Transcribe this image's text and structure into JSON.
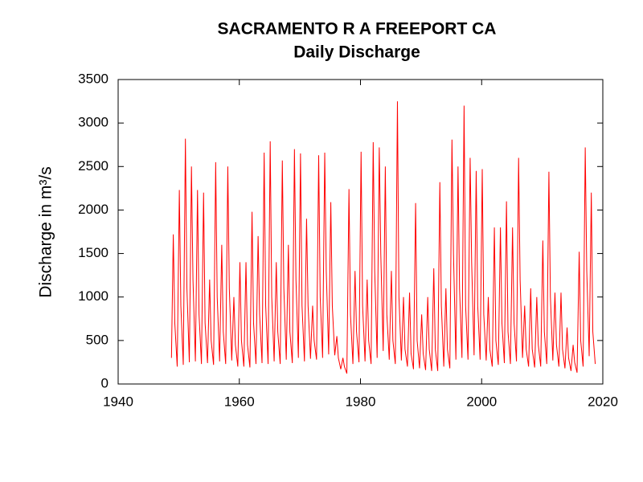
{
  "chart_data": {
    "type": "line",
    "title": "SACRAMENTO R A FREEPORT CA",
    "subtitle": "Daily Discharge",
    "y_label": "Discharge in m³/s",
    "color": "#ff0000",
    "xlim": [
      1940,
      2020
    ],
    "xticks": [
      1940,
      1960,
      1980,
      2000,
      2020
    ],
    "ylim": [
      0,
      3500
    ],
    "yticks": [
      0,
      500,
      1000,
      1500,
      2000,
      2500,
      3000,
      3500
    ],
    "x": [
      1948.8,
      1949.1,
      1949.35,
      1949.75,
      1950.1,
      1950.35,
      1950.75,
      1951.1,
      1951.35,
      1951.75,
      1952.1,
      1952.35,
      1952.75,
      1953.1,
      1953.35,
      1953.75,
      1954.1,
      1954.35,
      1954.75,
      1955.1,
      1955.35,
      1955.75,
      1956.1,
      1956.35,
      1956.75,
      1957.1,
      1957.35,
      1957.75,
      1958.1,
      1958.35,
      1958.75,
      1959.1,
      1959.35,
      1959.75,
      1960.1,
      1960.35,
      1960.75,
      1961.1,
      1961.35,
      1961.75,
      1962.1,
      1962.35,
      1962.75,
      1963.1,
      1963.35,
      1963.75,
      1964.1,
      1964.35,
      1964.75,
      1965.1,
      1965.35,
      1965.75,
      1966.1,
      1966.35,
      1966.75,
      1967.1,
      1967.35,
      1967.75,
      1968.1,
      1968.35,
      1968.75,
      1969.1,
      1969.35,
      1969.75,
      1970.1,
      1970.35,
      1970.75,
      1971.1,
      1971.35,
      1971.75,
      1972.1,
      1972.35,
      1972.75,
      1973.1,
      1973.35,
      1973.75,
      1974.1,
      1974.35,
      1974.75,
      1975.1,
      1975.35,
      1975.75,
      1976.1,
      1976.35,
      1976.75,
      1977.1,
      1977.35,
      1977.75,
      1978.1,
      1978.35,
      1978.75,
      1979.1,
      1979.35,
      1979.75,
      1980.1,
      1980.35,
      1980.75,
      1981.1,
      1981.35,
      1981.75,
      1982.1,
      1982.35,
      1982.75,
      1983.1,
      1983.35,
      1983.75,
      1984.1,
      1984.35,
      1984.75,
      1985.1,
      1985.35,
      1985.75,
      1986.1,
      1986.35,
      1986.75,
      1987.1,
      1987.35,
      1987.75,
      1988.1,
      1988.35,
      1988.75,
      1989.1,
      1989.35,
      1989.75,
      1990.1,
      1990.35,
      1990.75,
      1991.1,
      1991.35,
      1991.75,
      1992.1,
      1992.35,
      1992.75,
      1993.1,
      1993.35,
      1993.75,
      1994.1,
      1994.35,
      1994.75,
      1995.1,
      1995.35,
      1995.75,
      1996.1,
      1996.35,
      1996.75,
      1997.1,
      1997.35,
      1997.75,
      1998.1,
      1998.35,
      1998.75,
      1999.1,
      1999.35,
      1999.75,
      2000.1,
      2000.35,
      2000.75,
      2001.1,
      2001.35,
      2001.75,
      2002.1,
      2002.35,
      2002.75,
      2003.1,
      2003.35,
      2003.75,
      2004.1,
      2004.35,
      2004.75,
      2005.1,
      2005.35,
      2005.75,
      2006.1,
      2006.35,
      2006.75,
      2007.1,
      2007.35,
      2007.75,
      2008.1,
      2008.35,
      2008.75,
      2009.1,
      2009.35,
      2009.75,
      2010.1,
      2010.35,
      2010.75,
      2011.1,
      2011.35,
      2011.75,
      2012.1,
      2012.35,
      2012.75,
      2013.1,
      2013.35,
      2013.75,
      2014.1,
      2014.35,
      2014.75,
      2015.1,
      2015.35,
      2015.75,
      2016.1,
      2016.35,
      2016.75,
      2017.1,
      2017.35,
      2017.75,
      2018.1,
      2018.35,
      2018.75
    ],
    "values": [
      300,
      1720,
      700,
      200,
      2230,
      900,
      220,
      2820,
      1100,
      250,
      2500,
      1200,
      260,
      2230,
      800,
      230,
      2200,
      700,
      240,
      1200,
      500,
      220,
      2550,
      1000,
      260,
      1600,
      600,
      230,
      2500,
      1100,
      270,
      1000,
      450,
      200,
      1400,
      500,
      200,
      1400,
      450,
      190,
      1980,
      700,
      230,
      1700,
      800,
      240,
      2660,
      900,
      230,
      2790,
      1000,
      260,
      1400,
      600,
      230,
      2570,
      1100,
      280,
      1600,
      600,
      240,
      2700,
      1200,
      300,
      2650,
      900,
      260,
      1900,
      900,
      290,
      900,
      500,
      280,
      2630,
      1000,
      300,
      2660,
      1300,
      340,
      2090,
      900,
      330,
      550,
      300,
      170,
      300,
      200,
      120,
      2240,
      800,
      230,
      1300,
      600,
      250,
      2670,
      900,
      260,
      1200,
      500,
      230,
      2780,
      1300,
      300,
      2720,
      1500,
      380,
      2500,
      800,
      280,
      1300,
      500,
      230,
      3250,
      1000,
      270,
      1000,
      400,
      200,
      1050,
      350,
      170,
      2080,
      500,
      180,
      800,
      350,
      160,
      1000,
      400,
      150,
      1330,
      400,
      150,
      2320,
      900,
      200,
      1100,
      400,
      180,
      2810,
      1500,
      280,
      2500,
      1100,
      300,
      3200,
      900,
      280,
      2600,
      1400,
      330,
      2450,
      900,
      280,
      2470,
      800,
      270,
      1000,
      400,
      200,
      1800,
      500,
      220,
      1800,
      700,
      240,
      2100,
      600,
      230,
      1800,
      700,
      260,
      2600,
      1200,
      300,
      900,
      400,
      200,
      1100,
      400,
      190,
      1000,
      450,
      200,
      1650,
      600,
      230,
      2440,
      1000,
      270,
      1050,
      450,
      200,
      1050,
      400,
      180,
      650,
      300,
      150,
      450,
      250,
      130,
      1520,
      500,
      200,
      2720,
      1300,
      320,
      2200,
      600,
      230
    ]
  }
}
